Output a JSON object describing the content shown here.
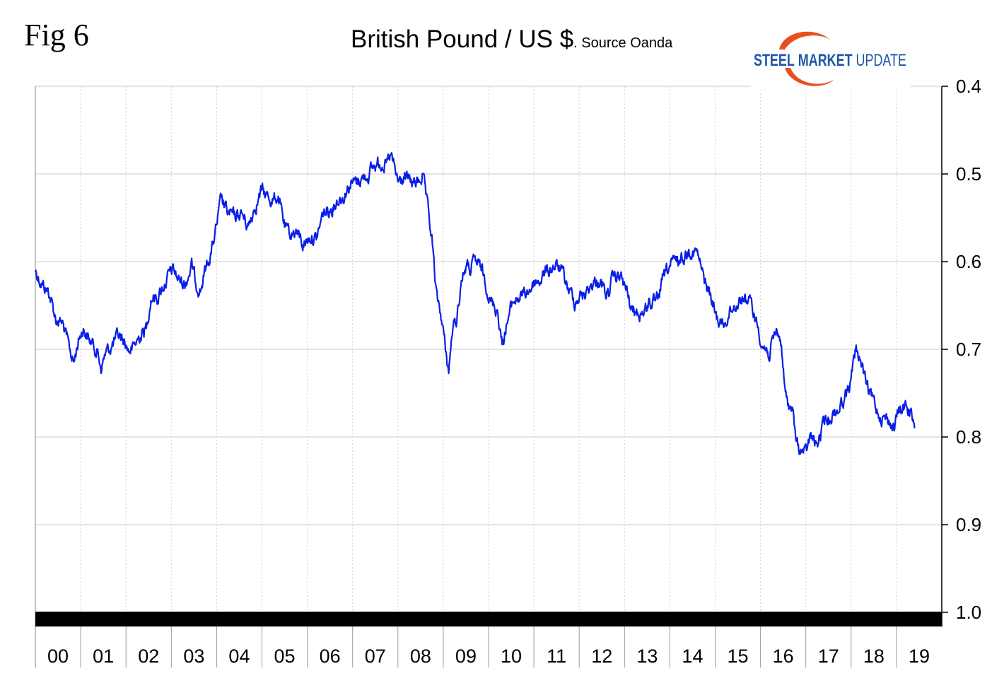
{
  "header": {
    "fig_label": "Fig 6",
    "title_main": "British Pound / US $",
    "title_source": ". Source Oanda",
    "logo_text_1": "STEEL",
    "logo_text_2": "MARKET",
    "logo_text_3": "UPDATE"
  },
  "colors": {
    "line": "#0a1fe6",
    "grid": "#c8c8c8",
    "band": "#000000",
    "logo_blue": "#1f56a8",
    "logo_orange": "#e8501f"
  },
  "chart_data": {
    "type": "line",
    "title": "British Pound / US $",
    "subtitle": "Source Oanda",
    "xlabel": "",
    "ylabel": "",
    "ylim": [
      1.0,
      0.4
    ],
    "y_inverted": true,
    "y_ticks": [
      "0.4",
      "0.5",
      "0.6",
      "0.7",
      "0.8",
      "0.9",
      "1.0"
    ],
    "x_ticks": [
      "00",
      "01",
      "02",
      "03",
      "04",
      "05",
      "06",
      "07",
      "08",
      "09",
      "10",
      "11",
      "12",
      "13",
      "14",
      "15",
      "16",
      "17",
      "18",
      "19"
    ],
    "grid": true,
    "legend": "none",
    "series": [
      {
        "values": [
          [
            2000.0,
            0.61
          ],
          [
            2000.15,
            0.625
          ],
          [
            2000.3,
            0.635
          ],
          [
            2000.45,
            0.665
          ],
          [
            2000.6,
            0.67
          ],
          [
            2000.75,
            0.7
          ],
          [
            2000.85,
            0.715
          ],
          [
            2000.95,
            0.69
          ],
          [
            2001.05,
            0.675
          ],
          [
            2001.2,
            0.69
          ],
          [
            2001.35,
            0.7
          ],
          [
            2001.45,
            0.72
          ],
          [
            2001.55,
            0.705
          ],
          [
            2001.7,
            0.695
          ],
          [
            2001.85,
            0.685
          ],
          [
            2001.95,
            0.69
          ],
          [
            2002.05,
            0.7
          ],
          [
            2002.15,
            0.7
          ],
          [
            2002.3,
            0.685
          ],
          [
            2002.45,
            0.675
          ],
          [
            2002.55,
            0.64
          ],
          [
            2002.7,
            0.64
          ],
          [
            2002.85,
            0.625
          ],
          [
            2002.95,
            0.615
          ],
          [
            2003.05,
            0.61
          ],
          [
            2003.15,
            0.62
          ],
          [
            2003.3,
            0.625
          ],
          [
            2003.45,
            0.605
          ],
          [
            2003.55,
            0.625
          ],
          [
            2003.65,
            0.63
          ],
          [
            2003.75,
            0.61
          ],
          [
            2003.9,
            0.585
          ],
          [
            2004.0,
            0.56
          ],
          [
            2004.1,
            0.53
          ],
          [
            2004.25,
            0.545
          ],
          [
            2004.4,
            0.55
          ],
          [
            2004.55,
            0.545
          ],
          [
            2004.7,
            0.56
          ],
          [
            2004.85,
            0.535
          ],
          [
            2005.0,
            0.52
          ],
          [
            2005.1,
            0.525
          ],
          [
            2005.25,
            0.53
          ],
          [
            2005.35,
            0.525
          ],
          [
            2005.5,
            0.56
          ],
          [
            2005.6,
            0.57
          ],
          [
            2005.75,
            0.565
          ],
          [
            2005.9,
            0.58
          ],
          [
            2006.0,
            0.575
          ],
          [
            2006.1,
            0.57
          ],
          [
            2006.2,
            0.575
          ],
          [
            2006.35,
            0.545
          ],
          [
            2006.5,
            0.54
          ],
          [
            2006.65,
            0.53
          ],
          [
            2006.8,
            0.525
          ],
          [
            2006.95,
            0.51
          ],
          [
            2007.05,
            0.51
          ],
          [
            2007.2,
            0.505
          ],
          [
            2007.35,
            0.5
          ],
          [
            2007.5,
            0.49
          ],
          [
            2007.65,
            0.485
          ],
          [
            2007.75,
            0.49
          ],
          [
            2007.85,
            0.48
          ],
          [
            2008.0,
            0.51
          ],
          [
            2008.15,
            0.505
          ],
          [
            2008.3,
            0.51
          ],
          [
            2008.45,
            0.51
          ],
          [
            2008.55,
            0.5
          ],
          [
            2008.65,
            0.54
          ],
          [
            2008.75,
            0.575
          ],
          [
            2008.85,
            0.64
          ],
          [
            2008.95,
            0.66
          ],
          [
            2009.05,
            0.7
          ],
          [
            2009.12,
            0.725
          ],
          [
            2009.2,
            0.68
          ],
          [
            2009.3,
            0.665
          ],
          [
            2009.4,
            0.62
          ],
          [
            2009.5,
            0.605
          ],
          [
            2009.6,
            0.61
          ],
          [
            2009.7,
            0.6
          ],
          [
            2009.85,
            0.61
          ],
          [
            2009.95,
            0.625
          ],
          [
            2010.05,
            0.645
          ],
          [
            2010.2,
            0.655
          ],
          [
            2010.3,
            0.695
          ],
          [
            2010.4,
            0.67
          ],
          [
            2010.55,
            0.645
          ],
          [
            2010.7,
            0.64
          ],
          [
            2010.85,
            0.635
          ],
          [
            2011.0,
            0.625
          ],
          [
            2011.15,
            0.62
          ],
          [
            2011.3,
            0.61
          ],
          [
            2011.45,
            0.605
          ],
          [
            2011.6,
            0.61
          ],
          [
            2011.75,
            0.63
          ],
          [
            2011.9,
            0.645
          ],
          [
            2012.0,
            0.64
          ],
          [
            2012.15,
            0.635
          ],
          [
            2012.3,
            0.625
          ],
          [
            2012.45,
            0.62
          ],
          [
            2012.6,
            0.64
          ],
          [
            2012.75,
            0.62
          ],
          [
            2012.9,
            0.615
          ],
          [
            2013.05,
            0.635
          ],
          [
            2013.15,
            0.655
          ],
          [
            2013.3,
            0.66
          ],
          [
            2013.45,
            0.655
          ],
          [
            2013.55,
            0.645
          ],
          [
            2013.7,
            0.65
          ],
          [
            2013.85,
            0.62
          ],
          [
            2014.0,
            0.605
          ],
          [
            2014.15,
            0.6
          ],
          [
            2014.3,
            0.595
          ],
          [
            2014.45,
            0.585
          ],
          [
            2014.6,
            0.59
          ],
          [
            2014.75,
            0.62
          ],
          [
            2014.9,
            0.64
          ],
          [
            2015.0,
            0.66
          ],
          [
            2015.1,
            0.67
          ],
          [
            2015.2,
            0.67
          ],
          [
            2015.35,
            0.655
          ],
          [
            2015.5,
            0.645
          ],
          [
            2015.65,
            0.64
          ],
          [
            2015.8,
            0.65
          ],
          [
            2015.95,
            0.675
          ],
          [
            2016.05,
            0.695
          ],
          [
            2016.2,
            0.705
          ],
          [
            2016.35,
            0.68
          ],
          [
            2016.45,
            0.69
          ],
          [
            2016.55,
            0.755
          ],
          [
            2016.7,
            0.77
          ],
          [
            2016.8,
            0.81
          ],
          [
            2016.9,
            0.815
          ],
          [
            2017.0,
            0.82
          ],
          [
            2017.1,
            0.8
          ],
          [
            2017.25,
            0.81
          ],
          [
            2017.4,
            0.785
          ],
          [
            2017.55,
            0.775
          ],
          [
            2017.7,
            0.77
          ],
          [
            2017.85,
            0.755
          ],
          [
            2018.0,
            0.735
          ],
          [
            2018.1,
            0.7
          ],
          [
            2018.2,
            0.71
          ],
          [
            2018.35,
            0.745
          ],
          [
            2018.5,
            0.76
          ],
          [
            2018.65,
            0.775
          ],
          [
            2018.8,
            0.78
          ],
          [
            2018.95,
            0.79
          ],
          [
            2019.05,
            0.77
          ],
          [
            2019.2,
            0.765
          ],
          [
            2019.3,
            0.77
          ],
          [
            2019.4,
            0.79
          ]
        ]
      }
    ]
  }
}
